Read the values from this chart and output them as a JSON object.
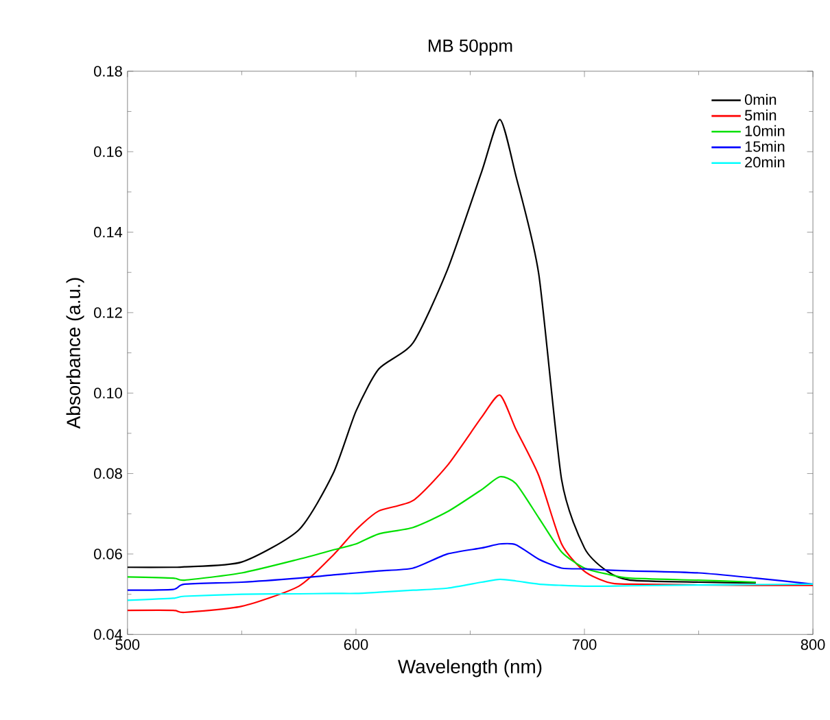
{
  "chart_data": {
    "type": "line",
    "title": "MB 50ppm",
    "xlabel": "Wavelength (nm)",
    "ylabel": "Absorbance (a.u.)",
    "x": [
      500,
      520,
      525,
      550,
      575,
      590,
      600,
      610,
      625,
      640,
      655,
      663,
      670,
      680,
      690,
      700,
      710,
      720,
      750,
      775,
      800
    ],
    "series": [
      {
        "name": "0min",
        "color": "#000000",
        "values": [
          0.0567,
          0.0567,
          0.0568,
          0.058,
          0.066,
          0.08,
          0.0955,
          0.106,
          0.1125,
          0.1306,
          0.155,
          0.168,
          0.154,
          0.1296,
          0.0785,
          0.0615,
          0.0557,
          0.0535,
          0.053,
          0.0528,
          null
        ]
      },
      {
        "name": "5min",
        "color": "#ff0000",
        "values": [
          0.046,
          0.046,
          0.0455,
          0.047,
          0.052,
          0.0597,
          0.066,
          0.0707,
          0.0733,
          0.082,
          0.094,
          0.0995,
          0.091,
          0.0795,
          0.0625,
          0.0557,
          0.053,
          0.0525,
          null,
          0.0522,
          0.0522
        ]
      },
      {
        "name": "10min",
        "color": "#00e000",
        "values": [
          0.0543,
          0.054,
          0.0535,
          0.0553,
          0.0587,
          0.061,
          0.0625,
          0.065,
          0.0666,
          0.0705,
          0.076,
          0.0792,
          0.0775,
          0.069,
          0.0605,
          0.0565,
          0.055,
          0.054,
          0.0535,
          0.053,
          null
        ]
      },
      {
        "name": "15min",
        "color": "#0000ff",
        "values": [
          0.051,
          0.0512,
          0.0525,
          0.053,
          0.054,
          0.0548,
          0.0553,
          0.0558,
          0.0565,
          0.06,
          0.0615,
          0.0625,
          0.0623,
          0.0587,
          0.0565,
          0.0563,
          0.056,
          0.0558,
          0.0553,
          0.054,
          0.0525
        ]
      },
      {
        "name": "20min",
        "color": "#00ffff",
        "values": [
          0.0485,
          0.049,
          0.0495,
          0.05,
          0.0501,
          0.0502,
          0.0502,
          0.0505,
          0.051,
          0.0515,
          0.053,
          0.0537,
          0.0533,
          0.0525,
          0.0522,
          0.052,
          0.052,
          0.0521,
          0.0523,
          0.0524,
          0.0525
        ]
      }
    ],
    "xlim": [
      500,
      800
    ],
    "ylim": [
      0.04,
      0.18
    ],
    "xticks": [
      500,
      600,
      700,
      800
    ],
    "yticks": [
      0.04,
      0.06,
      0.08,
      {
        "value": 0.1,
        "label": "0.10"
      },
      0.12,
      0.14,
      0.16,
      0.18
    ],
    "legend": "top right",
    "grid": false
  }
}
